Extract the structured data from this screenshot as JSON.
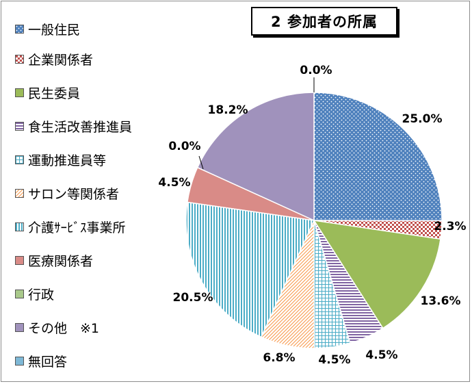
{
  "chart_data": {
    "type": "pie",
    "title": "2 参加者の所属",
    "slices": [
      {
        "label": "一般住民",
        "value": 25.0,
        "display": "25.0%",
        "color": "#4f81bd",
        "pattern": "dots",
        "icon": "dotted-square"
      },
      {
        "label": "企業関係者",
        "value": 2.3,
        "display": "2.3%",
        "color": "#c0504d",
        "pattern": "check",
        "icon": "checkered-square"
      },
      {
        "label": "民生委員",
        "value": 13.6,
        "display": "13.6%",
        "color": "#9bbb59",
        "pattern": "solid",
        "icon": "solid-square"
      },
      {
        "label": "食生活改善推進員",
        "value": 4.5,
        "display": "4.5%",
        "color": "#8064a2",
        "pattern": "hstripes",
        "icon": "striped-square"
      },
      {
        "label": "運動推進員等",
        "value": 4.5,
        "display": "4.5%",
        "color": "#4bacc6",
        "pattern": "grid",
        "icon": "grid-square"
      },
      {
        "label": "サロン等関係者",
        "value": 6.8,
        "display": "6.8%",
        "color": "#f79646",
        "pattern": "diag",
        "icon": "diagonal-square"
      },
      {
        "label": "介護ｻｰﾋﾞｽ事業所",
        "value": 20.5,
        "display": "20.5%",
        "color": "#4bacc6",
        "pattern": "vstripes",
        "icon": "vstripe-square"
      },
      {
        "label": "医療関係者",
        "value": 4.5,
        "display": "4.5%",
        "color": "#d98b87",
        "pattern": "solid",
        "icon": "solid-square"
      },
      {
        "label": "行政",
        "value": 0.0,
        "display": "0.0%",
        "color": "#a9c98b",
        "pattern": "solid",
        "icon": "solid-square"
      },
      {
        "label": "その他　※1",
        "value": 18.2,
        "display": "18.2%",
        "color": "#a092bc",
        "pattern": "solid",
        "icon": "solid-square"
      },
      {
        "label": "無回答",
        "value": 0.0,
        "display": "0.0%",
        "color": "#7eb8d6",
        "pattern": "solid",
        "icon": "solid-square"
      }
    ],
    "legend_position": "left",
    "start": "top",
    "direction": "clockwise"
  }
}
